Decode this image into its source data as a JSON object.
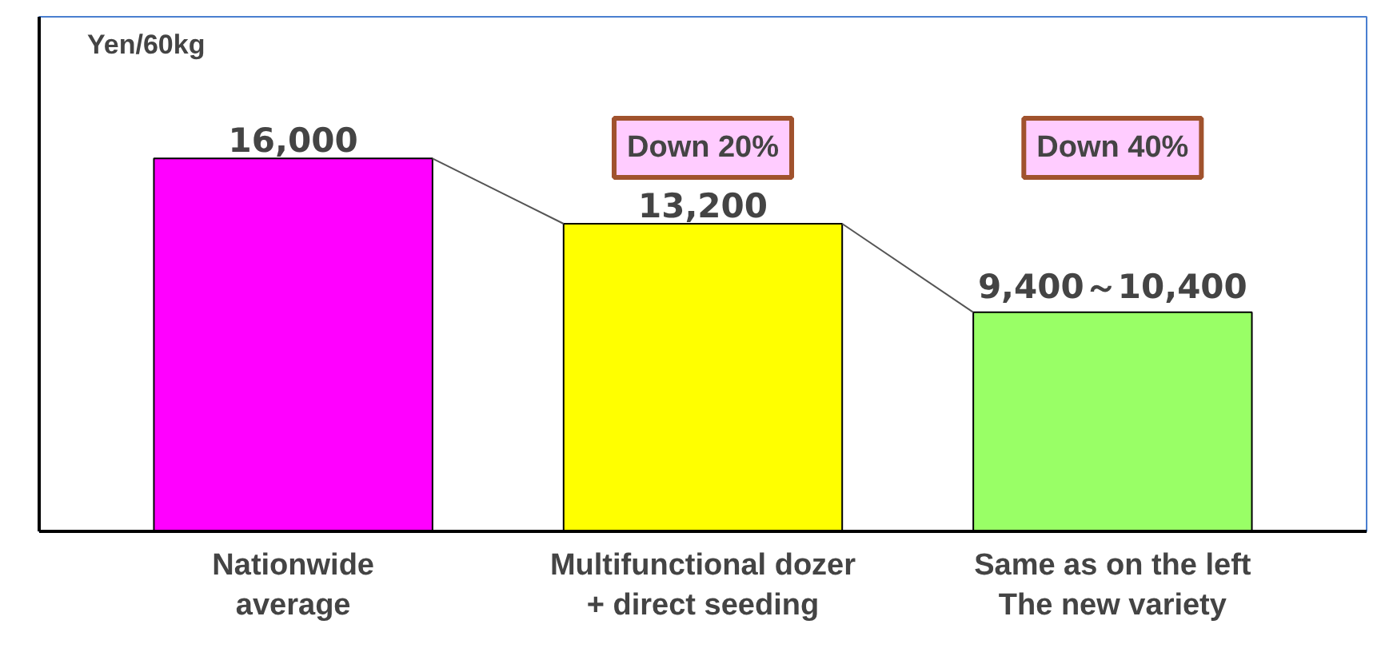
{
  "chart_data": {
    "type": "bar",
    "ylabel": "Yen/60kg",
    "categories": [
      "Nationwide\naverage",
      "Multifunctional dozer\n+ direct seeding",
      "Same as on the left\nThe new variety"
    ],
    "values": [
      16000,
      13200,
      9400
    ],
    "colors": [
      "#ff00ff",
      "#ffff00",
      "#99ff66"
    ],
    "value_labels": [
      "16,000",
      "13,200",
      "9,400～10,400"
    ],
    "annotations": [
      "Down 20%",
      "Down 40%"
    ],
    "grid": false
  }
}
